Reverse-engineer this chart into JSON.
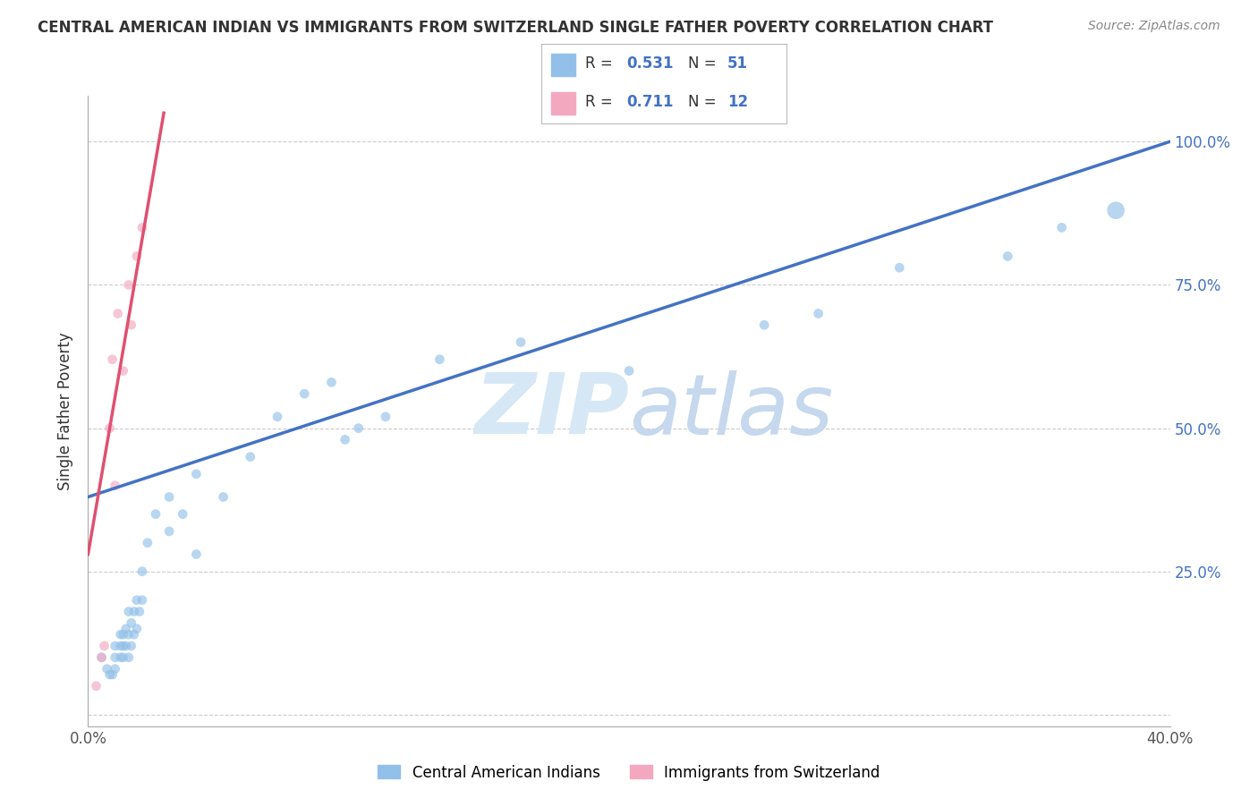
{
  "title": "CENTRAL AMERICAN INDIAN VS IMMIGRANTS FROM SWITZERLAND SINGLE FATHER POVERTY CORRELATION CHART",
  "source": "Source: ZipAtlas.com",
  "ylabel": "Single Father Poverty",
  "legend_label1": "Central American Indians",
  "legend_label2": "Immigrants from Switzerland",
  "r1": 0.531,
  "n1": 51,
  "r2": 0.711,
  "n2": 12,
  "color1": "#92C0E8",
  "color2": "#F4A8C0",
  "trendline1_color": "#4472C4",
  "trendline2_color": "#E05070",
  "xmin": 0.0,
  "xmax": 0.4,
  "ymin": -0.02,
  "ymax": 1.08,
  "x_ticks": [
    0.0,
    0.1,
    0.2,
    0.3,
    0.4
  ],
  "x_tick_labels": [
    "0.0%",
    "",
    "",
    "",
    "40.0%"
  ],
  "y_ticks": [
    0.0,
    0.25,
    0.5,
    0.75,
    1.0
  ],
  "y_tick_labels_right": [
    "",
    "25.0%",
    "50.0%",
    "75.0%",
    "100.0%"
  ],
  "blue_x": [
    0.005,
    0.007,
    0.008,
    0.009,
    0.01,
    0.01,
    0.01,
    0.012,
    0.012,
    0.012,
    0.013,
    0.013,
    0.013,
    0.014,
    0.014,
    0.015,
    0.015,
    0.015,
    0.016,
    0.016,
    0.017,
    0.017,
    0.018,
    0.018,
    0.019,
    0.02,
    0.02,
    0.022,
    0.025,
    0.03,
    0.03,
    0.035,
    0.04,
    0.04,
    0.05,
    0.06,
    0.07,
    0.08,
    0.09,
    0.095,
    0.1,
    0.11,
    0.13,
    0.16,
    0.2,
    0.25,
    0.27,
    0.3,
    0.34,
    0.36,
    0.38
  ],
  "blue_y": [
    0.1,
    0.08,
    0.07,
    0.07,
    0.08,
    0.1,
    0.12,
    0.1,
    0.12,
    0.14,
    0.1,
    0.12,
    0.14,
    0.12,
    0.15,
    0.1,
    0.14,
    0.18,
    0.12,
    0.16,
    0.14,
    0.18,
    0.15,
    0.2,
    0.18,
    0.2,
    0.25,
    0.3,
    0.35,
    0.32,
    0.38,
    0.35,
    0.42,
    0.28,
    0.38,
    0.45,
    0.52,
    0.56,
    0.58,
    0.48,
    0.5,
    0.52,
    0.62,
    0.65,
    0.6,
    0.68,
    0.7,
    0.78,
    0.8,
    0.85,
    0.88
  ],
  "blue_sizes": [
    60,
    60,
    60,
    60,
    60,
    60,
    60,
    60,
    60,
    60,
    60,
    60,
    60,
    60,
    60,
    60,
    60,
    60,
    60,
    60,
    60,
    60,
    60,
    60,
    60,
    60,
    60,
    60,
    60,
    60,
    60,
    60,
    60,
    60,
    60,
    60,
    60,
    60,
    60,
    60,
    60,
    60,
    60,
    60,
    60,
    60,
    60,
    60,
    60,
    60,
    200
  ],
  "pink_x": [
    0.003,
    0.005,
    0.006,
    0.008,
    0.009,
    0.01,
    0.011,
    0.013,
    0.015,
    0.016,
    0.018,
    0.02
  ],
  "pink_y": [
    0.05,
    0.1,
    0.12,
    0.5,
    0.62,
    0.4,
    0.7,
    0.6,
    0.75,
    0.68,
    0.8,
    0.85
  ],
  "pink_sizes": [
    60,
    60,
    60,
    60,
    60,
    60,
    60,
    60,
    60,
    60,
    60,
    60
  ],
  "trendline1_x": [
    0.0,
    0.4
  ],
  "trendline1_y": [
    0.38,
    1.0
  ],
  "trendline2_x": [
    0.0,
    0.028
  ],
  "trendline2_y": [
    0.28,
    1.05
  ],
  "watermark_color": "#D6E8F5",
  "background_color": "#FFFFFF",
  "grid_color": "#CCCCCC"
}
